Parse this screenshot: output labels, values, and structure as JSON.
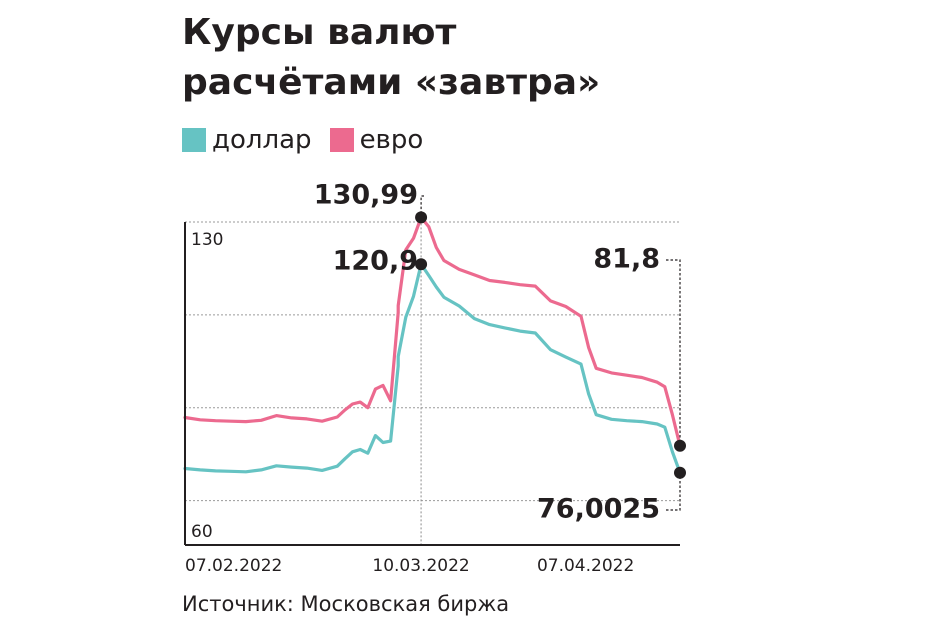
{
  "title": {
    "line1": "Курсы валют",
    "line2": "расчётами «завтра»"
  },
  "legend": [
    {
      "label": "доллар",
      "color": "#66c3c3"
    },
    {
      "label": "евро",
      "color": "#ec6a8f"
    }
  ],
  "source": "Источник: Московская биржа",
  "chart_data": {
    "type": "line",
    "title": "Курсы валют расчётами «завтра»",
    "xlabel": "",
    "ylabel": "",
    "xlim": [
      "2022-02-07",
      "2022-04-13"
    ],
    "ylim": [
      60,
      130
    ],
    "y_ticks": [
      {
        "value": 130,
        "label": "130"
      },
      {
        "value": 60,
        "label": "60"
      }
    ],
    "y_gridlines": [
      130,
      110,
      90,
      70
    ],
    "x_ticks": [
      {
        "date": "2022-02-07",
        "label": "07.02.2022"
      },
      {
        "date": "2022-03-10",
        "label": "10.03.2022"
      },
      {
        "date": "2022-04-07",
        "label": "07.04.2022"
      }
    ],
    "grid": true,
    "series": [
      {
        "name": "евро",
        "color": "#ec6a8f",
        "points": [
          [
            "2022-02-07",
            87.9
          ],
          [
            "2022-02-09",
            87.4
          ],
          [
            "2022-02-11",
            87.2
          ],
          [
            "2022-02-13",
            87.1
          ],
          [
            "2022-02-15",
            87.0
          ],
          [
            "2022-02-17",
            87.3
          ],
          [
            "2022-02-19",
            88.3
          ],
          [
            "2022-02-21",
            87.8
          ],
          [
            "2022-02-23",
            87.6
          ],
          [
            "2022-02-25",
            87.1
          ],
          [
            "2022-02-27",
            88.0
          ],
          [
            "2022-02-28",
            89.5
          ],
          [
            "2022-03-01",
            90.8
          ],
          [
            "2022-03-02",
            91.2
          ],
          [
            "2022-03-03",
            90.0
          ],
          [
            "2022-03-04",
            94.0
          ],
          [
            "2022-03-05",
            94.8
          ],
          [
            "2022-03-06",
            91.5
          ],
          [
            "2022-03-07",
            110.5
          ],
          [
            "2022-03-07",
            112.0
          ],
          [
            "2022-03-08",
            124.0
          ],
          [
            "2022-03-09",
            126.5
          ],
          [
            "2022-03-10",
            130.99
          ],
          [
            "2022-03-11",
            129.0
          ],
          [
            "2022-03-12",
            124.5
          ],
          [
            "2022-03-13",
            121.7
          ],
          [
            "2022-03-15",
            119.8
          ],
          [
            "2022-03-17",
            118.6
          ],
          [
            "2022-03-19",
            117.4
          ],
          [
            "2022-03-21",
            117.0
          ],
          [
            "2022-03-23",
            116.5
          ],
          [
            "2022-03-25",
            116.2
          ],
          [
            "2022-03-27",
            113.0
          ],
          [
            "2022-03-29",
            111.8
          ],
          [
            "2022-03-31",
            109.7
          ],
          [
            "2022-04-01",
            103.0
          ],
          [
            "2022-04-02",
            98.5
          ],
          [
            "2022-04-04",
            97.5
          ],
          [
            "2022-04-06",
            97.0
          ],
          [
            "2022-04-08",
            96.5
          ],
          [
            "2022-04-10",
            95.5
          ],
          [
            "2022-04-11",
            94.5
          ],
          [
            "2022-04-12",
            88.5
          ],
          [
            "2022-04-13",
            81.8
          ]
        ]
      },
      {
        "name": "доллар",
        "color": "#66c3c3",
        "points": [
          [
            "2022-02-07",
            76.9
          ],
          [
            "2022-02-09",
            76.6
          ],
          [
            "2022-02-11",
            76.4
          ],
          [
            "2022-02-13",
            76.3
          ],
          [
            "2022-02-15",
            76.2
          ],
          [
            "2022-02-17",
            76.6
          ],
          [
            "2022-02-19",
            77.5
          ],
          [
            "2022-02-21",
            77.2
          ],
          [
            "2022-02-23",
            77.0
          ],
          [
            "2022-02-25",
            76.5
          ],
          [
            "2022-02-27",
            77.4
          ],
          [
            "2022-02-28",
            79.0
          ],
          [
            "2022-03-01",
            80.5
          ],
          [
            "2022-03-02",
            81.0
          ],
          [
            "2022-03-03",
            80.2
          ],
          [
            "2022-03-04",
            84.0
          ],
          [
            "2022-03-05",
            82.5
          ],
          [
            "2022-03-06",
            82.8
          ],
          [
            "2022-03-07",
            99.0
          ],
          [
            "2022-03-07",
            101.0
          ],
          [
            "2022-03-08",
            109.5
          ],
          [
            "2022-03-09",
            114.0
          ],
          [
            "2022-03-10",
            120.9
          ],
          [
            "2022-03-11",
            118.5
          ],
          [
            "2022-03-12",
            116.0
          ],
          [
            "2022-03-13",
            113.8
          ],
          [
            "2022-03-15",
            111.9
          ],
          [
            "2022-03-17",
            109.2
          ],
          [
            "2022-03-19",
            107.9
          ],
          [
            "2022-03-21",
            107.2
          ],
          [
            "2022-03-23",
            106.5
          ],
          [
            "2022-03-25",
            106.1
          ],
          [
            "2022-03-27",
            102.5
          ],
          [
            "2022-03-29",
            100.9
          ],
          [
            "2022-03-31",
            99.4
          ],
          [
            "2022-04-01",
            93.0
          ],
          [
            "2022-04-02",
            88.5
          ],
          [
            "2022-04-04",
            87.5
          ],
          [
            "2022-04-06",
            87.2
          ],
          [
            "2022-04-08",
            87.0
          ],
          [
            "2022-04-10",
            86.5
          ],
          [
            "2022-04-11",
            85.8
          ],
          [
            "2022-04-12",
            80.5
          ],
          [
            "2022-04-13",
            76.0025
          ]
        ]
      }
    ],
    "annotations": [
      {
        "label": "130,99",
        "date": "2022-03-10",
        "value": 130.99,
        "series": "евро"
      },
      {
        "label": "120,9",
        "date": "2022-03-10",
        "value": 120.9,
        "series": "доллар"
      },
      {
        "label": "81,8",
        "date": "2022-04-13",
        "value": 81.8,
        "series": "евро"
      },
      {
        "label": "76,0025",
        "date": "2022-04-13",
        "value": 76.0025,
        "series": "доллар"
      }
    ]
  }
}
